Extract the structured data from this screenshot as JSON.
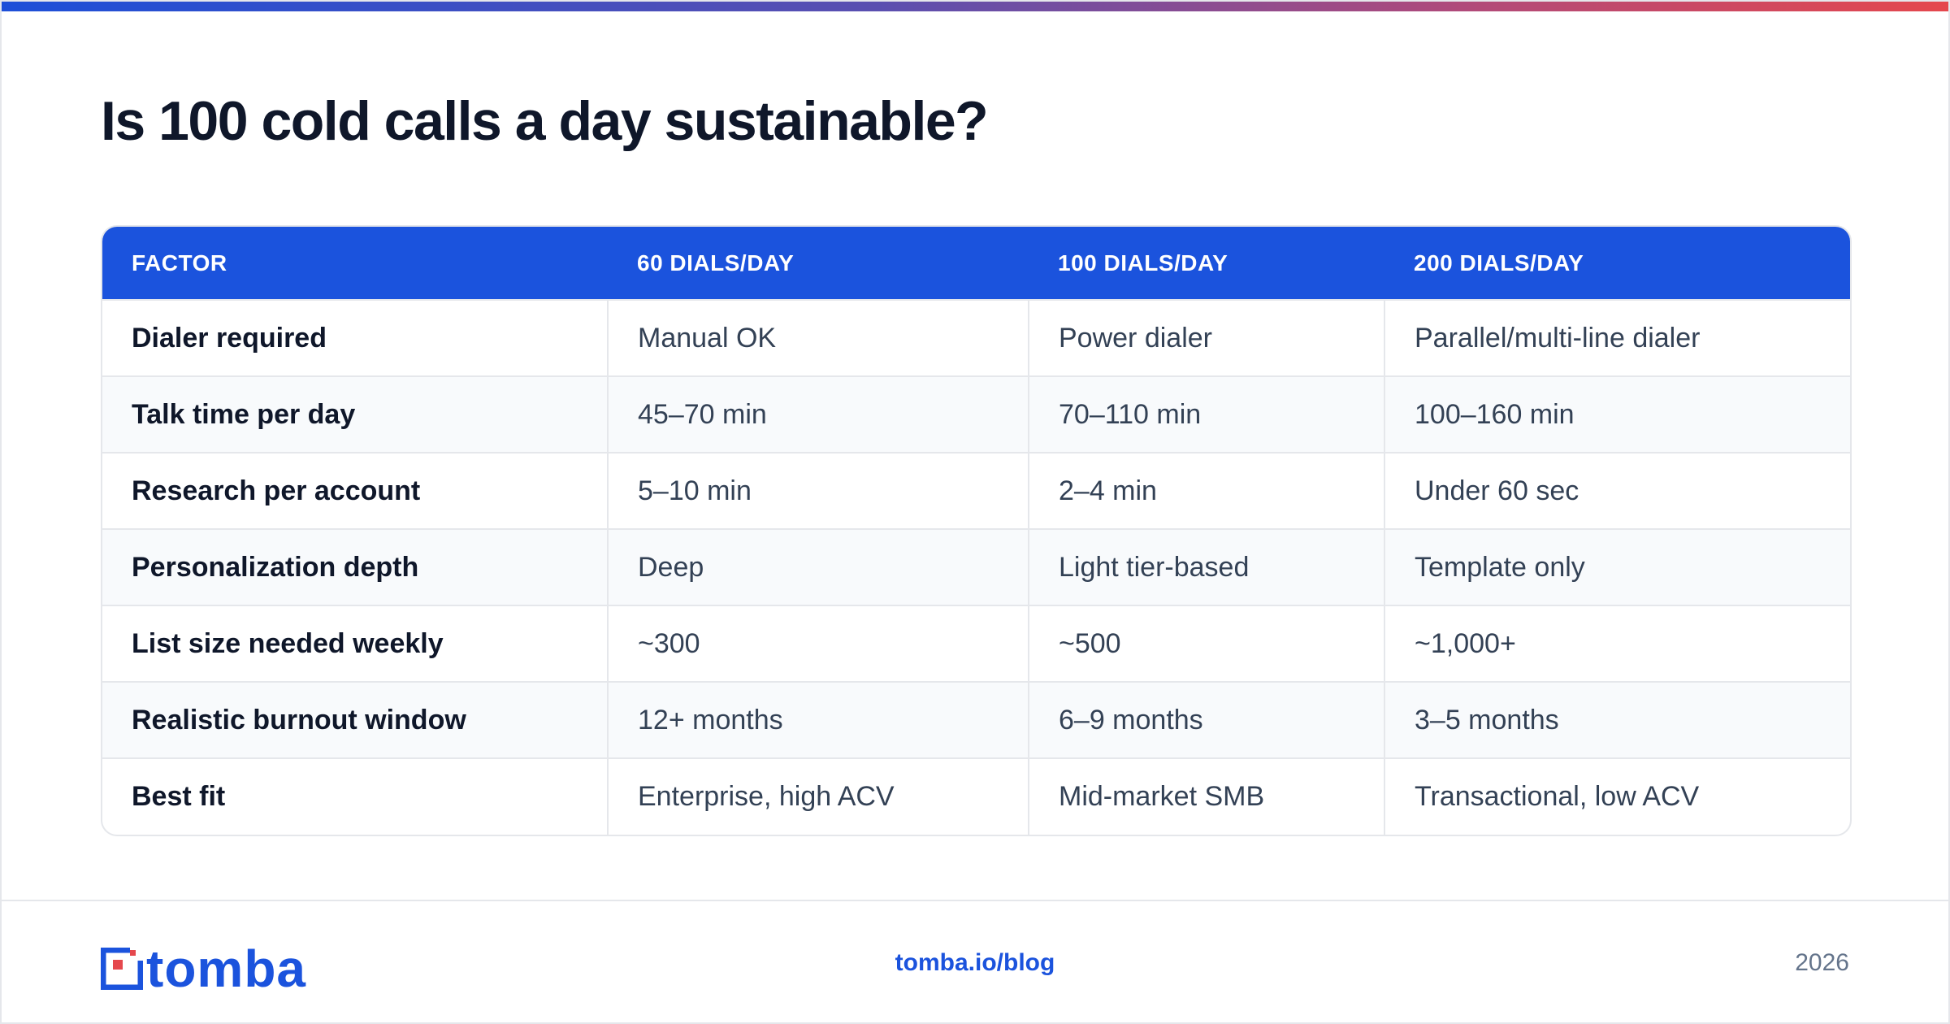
{
  "title": "Is 100 cold calls a day sustainable?",
  "table": {
    "headers": [
      "FACTOR",
      "60 DIALS/DAY",
      "100 DIALS/DAY",
      "200 DIALS/DAY"
    ],
    "rows": [
      [
        "Dialer required",
        "Manual OK",
        "Power dialer",
        "Parallel/multi-line dialer"
      ],
      [
        "Talk time per day",
        "45–70 min",
        "70–110 min",
        "100–160 min"
      ],
      [
        "Research per account",
        "5–10 min",
        "2–4 min",
        "Under 60 sec"
      ],
      [
        "Personalization depth",
        "Deep",
        "Light tier-based",
        "Template only"
      ],
      [
        "List size needed weekly",
        "~300",
        "~500",
        "~1,000+"
      ],
      [
        "Realistic burnout window",
        "12+ months",
        "6–9 months",
        "3–5 months"
      ],
      [
        "Best fit",
        "Enterprise, high ACV",
        "Mid-market SMB",
        "Transactional, low ACV"
      ]
    ]
  },
  "footer": {
    "logo_text": "tomba",
    "link": "tomba.io/blog",
    "year": "2026"
  },
  "colors": {
    "accent_blue": "#1b53dd",
    "logo_red": "#e5484d",
    "title": "#0f172a"
  },
  "icons": [
    "tomba-logo-mark-icon"
  ]
}
